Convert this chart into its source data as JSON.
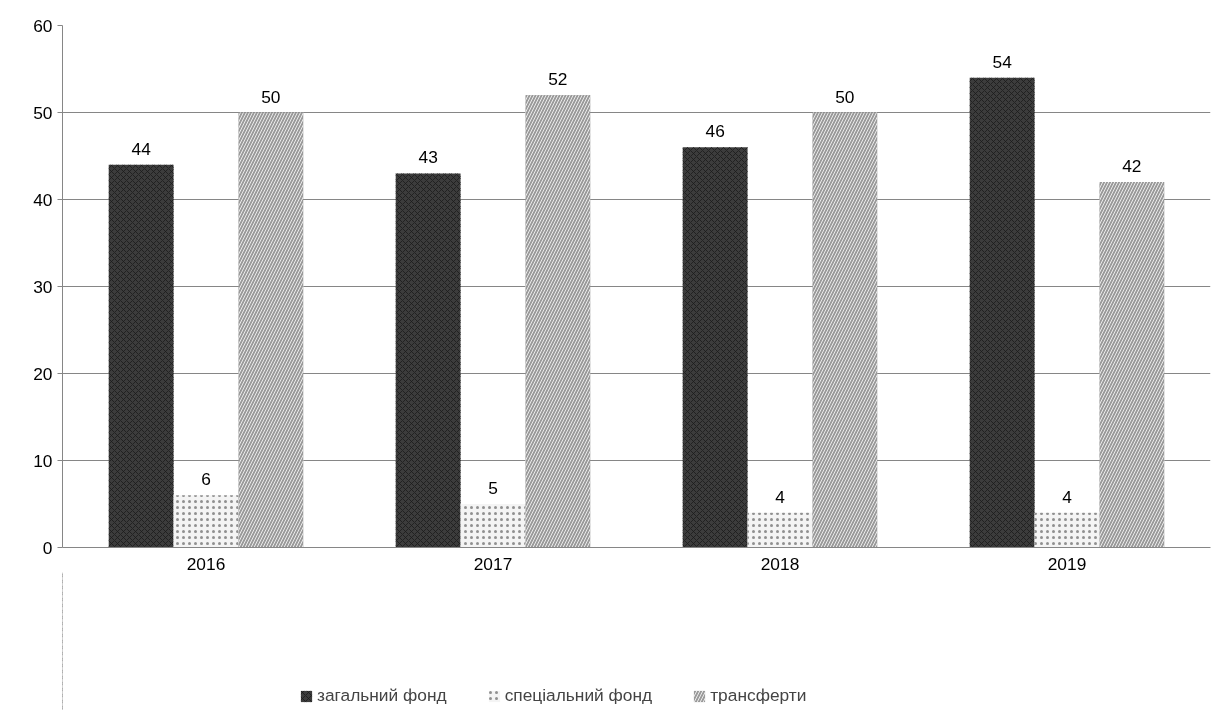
{
  "chart_data": {
    "type": "bar",
    "categories": [
      "2016",
      "2017",
      "2018",
      "2019"
    ],
    "series": [
      {
        "name": "загальний фонд",
        "color": "#3c3c3c",
        "values": [
          44,
          43,
          46,
          54
        ]
      },
      {
        "name": "спеціальний фонд",
        "color": "#f4f4f4",
        "values": [
          6,
          5,
          4,
          4
        ]
      },
      {
        "name": "трансферти",
        "color": "#9a9a9a",
        "values": [
          50,
          52,
          50,
          42
        ]
      }
    ],
    "ylim": [
      0,
      60
    ],
    "yticks": [
      0,
      10,
      20,
      30,
      40,
      50,
      60
    ],
    "grid": "y",
    "legend": "bottom",
    "data_labels": true
  }
}
